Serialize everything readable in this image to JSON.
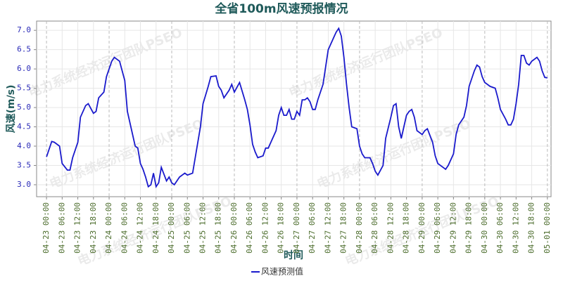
{
  "chart_data": {
    "type": "line",
    "title": "全省100m风速预报情况",
    "x_label": "时间",
    "y_label": "风速(m/s)",
    "watermark": "电力系统经济运行团队PSEO",
    "grid": true,
    "legend": "bottom",
    "xlim": [
      -3.8,
      193.4
    ],
    "ylim": [
      2.69,
      7.24
    ],
    "yticks": [
      {
        "value": 3,
        "label": "3.0"
      },
      {
        "value": 3.5,
        "label": "3.5"
      },
      {
        "value": 4,
        "label": "4.0"
      },
      {
        "value": 4.5,
        "label": "4.5"
      },
      {
        "value": 5,
        "label": "5.0"
      },
      {
        "value": 5.5,
        "label": "5.5"
      },
      {
        "value": 6,
        "label": "6.0"
      },
      {
        "value": 6.5,
        "label": "6.5"
      },
      {
        "value": 7,
        "label": "7.0"
      }
    ],
    "xticks": [
      {
        "value": 0,
        "label": "04-23 00:00"
      },
      {
        "value": 6,
        "label": "04-23 06:00"
      },
      {
        "value": 12,
        "label": "04-23 12:00"
      },
      {
        "value": 18,
        "label": "04-23 18:00"
      },
      {
        "value": 24,
        "label": "04-24 00:00"
      },
      {
        "value": 30,
        "label": "04-24 06:00"
      },
      {
        "value": 36,
        "label": "04-24 12:00"
      },
      {
        "value": 42,
        "label": "04-24 18:00"
      },
      {
        "value": 48,
        "label": "04-25 00:00"
      },
      {
        "value": 54,
        "label": "04-25 06:00"
      },
      {
        "value": 60,
        "label": "04-25 12:00"
      },
      {
        "value": 66,
        "label": "04-25 18:00"
      },
      {
        "value": 72,
        "label": "04-26 00:00"
      },
      {
        "value": 78,
        "label": "04-26 06:00"
      },
      {
        "value": 84,
        "label": "04-26 12:00"
      },
      {
        "value": 90,
        "label": "04-26 18:00"
      },
      {
        "value": 96,
        "label": "04-27 00:00"
      },
      {
        "value": 102,
        "label": "04-27 06:00"
      },
      {
        "value": 108,
        "label": "04-27 12:00"
      },
      {
        "value": 114,
        "label": "04-27 18:00"
      },
      {
        "value": 120,
        "label": "04-28 00:00"
      },
      {
        "value": 126,
        "label": "04-28 06:00"
      },
      {
        "value": 132,
        "label": "04-28 12:00"
      },
      {
        "value": 138,
        "label": "04-28 18:00"
      },
      {
        "value": 144,
        "label": "04-29 00:00"
      },
      {
        "value": 150,
        "label": "04-29 06:00"
      },
      {
        "value": 156,
        "label": "04-29 12:00"
      },
      {
        "value": 162,
        "label": "04-29 18:00"
      },
      {
        "value": 168,
        "label": "04-30 00:00"
      },
      {
        "value": 174,
        "label": "04-30 06:00"
      },
      {
        "value": 180,
        "label": "04-30 12:00"
      },
      {
        "value": 186,
        "label": "04-30 18:00"
      },
      {
        "value": 192,
        "label": "05-01 00:00"
      }
    ],
    "x": [
      0,
      2,
      3,
      5,
      6,
      8,
      9,
      10,
      12,
      13,
      15,
      16,
      18,
      19,
      20,
      22,
      23,
      25,
      26,
      28,
      30,
      31,
      33,
      34,
      35,
      36,
      37,
      38,
      39,
      40,
      41,
      42,
      43,
      44,
      46,
      47,
      48,
      49,
      50,
      51,
      53,
      54,
      56,
      57,
      59,
      60,
      62,
      63,
      65,
      66,
      67,
      68,
      70,
      71,
      72,
      74,
      76,
      77,
      78,
      79,
      80,
      81,
      83,
      84,
      85,
      86,
      88,
      89,
      90,
      91,
      92,
      93,
      94,
      95,
      96,
      97,
      98,
      99,
      100,
      101,
      102,
      103,
      104,
      106,
      107,
      108,
      110,
      111,
      112,
      113,
      114,
      115,
      116,
      117,
      119,
      120,
      121,
      122,
      124,
      125,
      126,
      127,
      129,
      130,
      132,
      133,
      134,
      135,
      136,
      137,
      138,
      139,
      140,
      141,
      142,
      144,
      145,
      146,
      148,
      149,
      150,
      152,
      153,
      154,
      156,
      157,
      158,
      160,
      161,
      162,
      164,
      165,
      166,
      167,
      168,
      169,
      170,
      172,
      173,
      174,
      176,
      177,
      178,
      179,
      180,
      181,
      182,
      183,
      184,
      185,
      186,
      188,
      189,
      190,
      191,
      192
    ],
    "series": [
      {
        "name": "风速预测值",
        "color": "#1a1acc",
        "values": [
          3.72,
          4.12,
          4.1,
          4.0,
          3.55,
          3.38,
          3.38,
          3.7,
          4.1,
          4.75,
          5.05,
          5.1,
          4.85,
          4.9,
          5.25,
          5.4,
          5.8,
          6.2,
          6.3,
          6.2,
          5.7,
          4.9,
          4.3,
          4.0,
          3.95,
          3.55,
          3.4,
          3.2,
          2.95,
          3.0,
          3.3,
          2.95,
          3.05,
          3.45,
          3.1,
          3.2,
          3.05,
          3.0,
          3.1,
          3.2,
          3.3,
          3.25,
          3.3,
          3.7,
          4.5,
          5.1,
          5.55,
          5.8,
          5.82,
          5.55,
          5.45,
          5.25,
          5.45,
          5.6,
          5.4,
          5.65,
          5.2,
          4.95,
          4.55,
          4.05,
          3.85,
          3.7,
          3.75,
          3.95,
          3.95,
          4.1,
          4.4,
          4.8,
          5.0,
          4.8,
          4.8,
          4.95,
          4.7,
          4.7,
          4.9,
          4.8,
          5.2,
          5.2,
          5.25,
          5.15,
          4.95,
          4.95,
          5.2,
          5.6,
          6.05,
          6.5,
          6.8,
          6.95,
          7.05,
          6.85,
          6.3,
          5.6,
          5.0,
          4.5,
          4.45,
          4.0,
          3.8,
          3.7,
          3.7,
          3.55,
          3.35,
          3.25,
          3.5,
          4.2,
          4.75,
          5.05,
          5.1,
          4.5,
          4.2,
          4.5,
          4.8,
          4.9,
          4.95,
          4.75,
          4.4,
          4.3,
          4.4,
          4.45,
          4.1,
          3.75,
          3.55,
          3.45,
          3.4,
          3.5,
          3.8,
          4.3,
          4.55,
          4.75,
          5.05,
          5.55,
          5.95,
          6.1,
          6.05,
          5.8,
          5.65,
          5.6,
          5.55,
          5.5,
          5.25,
          4.95,
          4.7,
          4.55,
          4.55,
          4.7,
          5.1,
          5.6,
          6.35,
          6.35,
          6.15,
          6.1,
          6.2,
          6.3,
          6.2,
          5.95,
          5.78,
          5.77
        ]
      }
    ]
  }
}
